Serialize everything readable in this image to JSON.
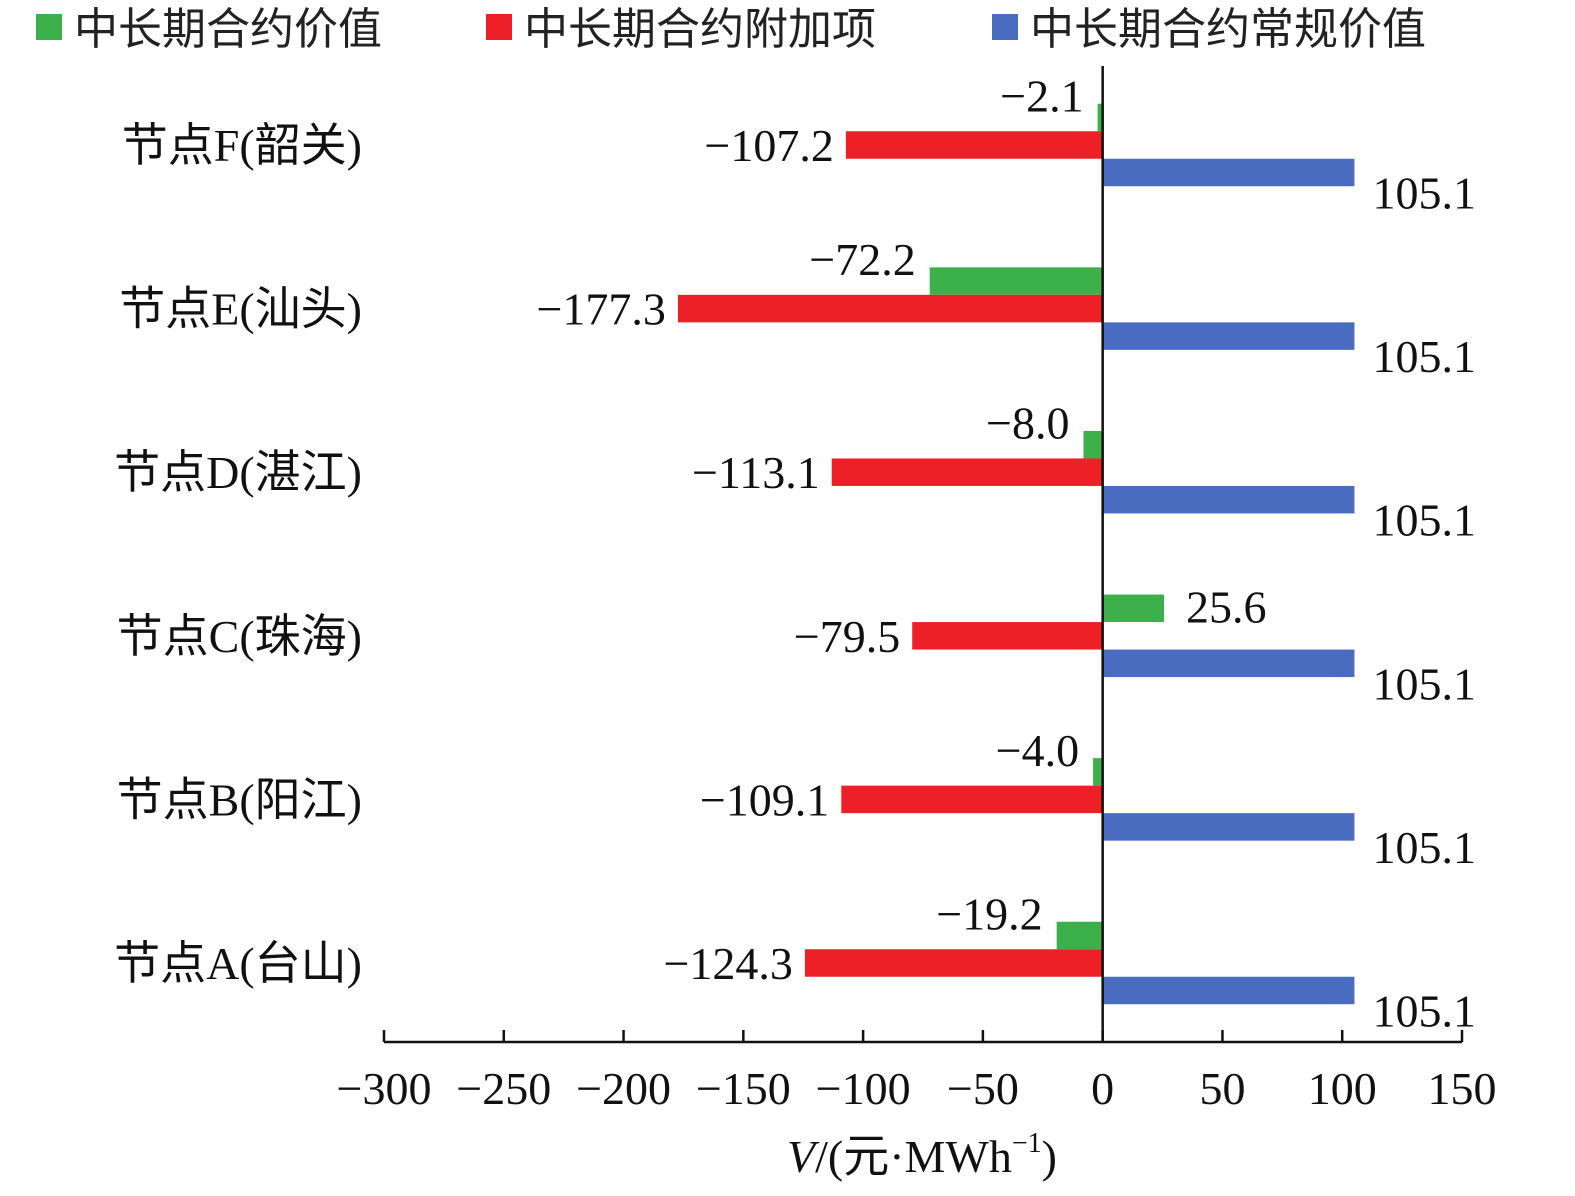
{
  "chart_data": {
    "type": "bar",
    "orientation": "horizontal",
    "categories": [
      "节点A(台山)",
      "节点B(阳江)",
      "节点C(珠海)",
      "节点D(湛江)",
      "节点E(汕头)",
      "节点F(韶关)"
    ],
    "series": [
      {
        "name": "中长期合约价值",
        "color": "#3cb04b",
        "values": [
          -19.2,
          -4.0,
          25.6,
          -8.0,
          -72.2,
          -2.1
        ],
        "labels": [
          "−19.2",
          "−4.0",
          "25.6",
          "−8.0",
          "−72.2",
          "−2.1"
        ]
      },
      {
        "name": "中长期合约附加项",
        "color": "#ee2027",
        "values": [
          -124.3,
          -109.1,
          -79.5,
          -113.1,
          -177.3,
          -107.2
        ],
        "labels": [
          "−124.3",
          "−109.1",
          "−79.5",
          "−113.1",
          "−177.3",
          "−107.2"
        ]
      },
      {
        "name": "中长期合约常规价值",
        "color": "#4a6cc0",
        "values": [
          105.1,
          105.1,
          105.1,
          105.1,
          105.1,
          105.1
        ],
        "labels": [
          "105.1",
          "105.1",
          "105.1",
          "105.1",
          "105.1",
          "105.1"
        ]
      }
    ],
    "xlim": [
      -300,
      150
    ],
    "xticks": [
      -300,
      -250,
      -200,
      -150,
      -100,
      -50,
      0,
      50,
      100,
      150
    ],
    "xtick_labels": [
      "−300",
      "−250",
      "−200",
      "−150",
      "−100",
      "−50",
      "0",
      "50",
      "100",
      "150"
    ],
    "xlabel_italic": "V",
    "xlabel_rest": "/(元·MWh",
    "xlabel_sup": "−1",
    "xlabel_close": ")",
    "legend_position": "top",
    "grid": false
  }
}
